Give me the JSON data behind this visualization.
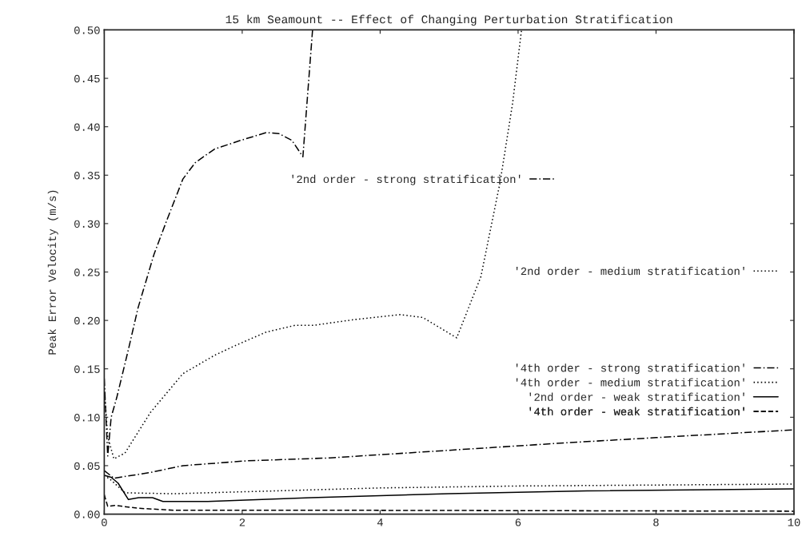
{
  "chart_data": {
    "type": "line",
    "title": "15 km Seamount -- Effect of Changing Perturbation Stratification",
    "ylabel": "Peak Error Velocity (m/s)",
    "xlim": [
      0,
      10
    ],
    "xticks": [
      0,
      2,
      4,
      6,
      8,
      10
    ],
    "ylim": [
      0,
      0.5
    ],
    "yticks": [
      {
        "value": 0,
        "label": "0.00"
      },
      0.05,
      {
        "value": 0.1,
        "label": "0.10"
      },
      0.15,
      {
        "value": 0.2,
        "label": "0.20"
      },
      0.25,
      {
        "value": 0.3,
        "label": "0.30"
      },
      0.35,
      {
        "value": 0.4,
        "label": "0.40"
      },
      0.45,
      {
        "value": 0.5,
        "label": "0.50"
      }
    ],
    "grid": false,
    "legend": "right",
    "marker": "none",
    "series": [
      {
        "name": "'2nd order - strong stratification'",
        "color": "#000000",
        "line_style": "dashdot",
        "x": [
          0,
          0.05,
          0.1,
          0.18,
          0.35,
          0.49,
          0.72,
          0.91,
          1.14,
          1.32,
          1.6,
          1.98,
          2.35,
          2.53,
          2.72,
          2.88,
          3.02
        ],
        "values": [
          0.14,
          0.06,
          0.1,
          0.12,
          0.17,
          0.213,
          0.268,
          0.304,
          0.346,
          0.363,
          0.377,
          0.386,
          0.394,
          0.393,
          0.386,
          0.369,
          0.5
        ]
      },
      {
        "name": "'2nd order - medium stratification'",
        "color": "#000000",
        "line_style": "dotted",
        "x": [
          0,
          0.05,
          0.14,
          0.3,
          0.67,
          1.14,
          1.6,
          1.93,
          2.35,
          2.77,
          3.04,
          3.64,
          4.29,
          4.62,
          5.11,
          5.46,
          5.74,
          5.92,
          6.05
        ],
        "values": [
          0.13,
          0.08,
          0.057,
          0.063,
          0.105,
          0.145,
          0.164,
          0.175,
          0.188,
          0.195,
          0.195,
          0.201,
          0.206,
          0.203,
          0.182,
          0.245,
          0.343,
          0.424,
          0.5
        ]
      },
      {
        "name": "'4th order - strong stratification'",
        "color": "#000000",
        "line_style": "dashdot",
        "x": [
          0,
          0.14,
          0.67,
          1.14,
          2.07,
          3.27,
          6.56,
          8,
          10
        ],
        "values": [
          0.045,
          0.037,
          0.043,
          0.05,
          0.055,
          0.058,
          0.073,
          0.079,
          0.087
        ]
      },
      {
        "name": "'4th order - medium stratification'",
        "color": "#000000",
        "line_style": "dotted",
        "x": [
          0,
          0.1,
          0.3,
          1,
          2,
          4,
          6,
          8,
          10
        ],
        "values": [
          0.04,
          0.035,
          0.022,
          0.021,
          0.023,
          0.027,
          0.029,
          0.03,
          0.031
        ]
      },
      {
        "name": "'2nd order - weak stratification'",
        "color": "#000000",
        "line_style": "solid",
        "x": [
          0,
          0.1,
          0.2,
          0.35,
          0.5,
          0.7,
          0.85,
          1.5,
          3,
          5,
          7,
          10
        ],
        "values": [
          0.04,
          0.038,
          0.032,
          0.015,
          0.017,
          0.017,
          0.013,
          0.013,
          0.017,
          0.021,
          0.024,
          0.026
        ]
      },
      {
        "name": "'4th order - weak stratification'",
        "color": "#000000",
        "line_style": "dashed",
        "x": [
          0,
          0.05,
          0.15,
          0.5,
          1,
          3,
          10
        ],
        "values": [
          0.02,
          0.008,
          0.009,
          0.006,
          0.004,
          0.004,
          0.003
        ]
      }
    ]
  }
}
